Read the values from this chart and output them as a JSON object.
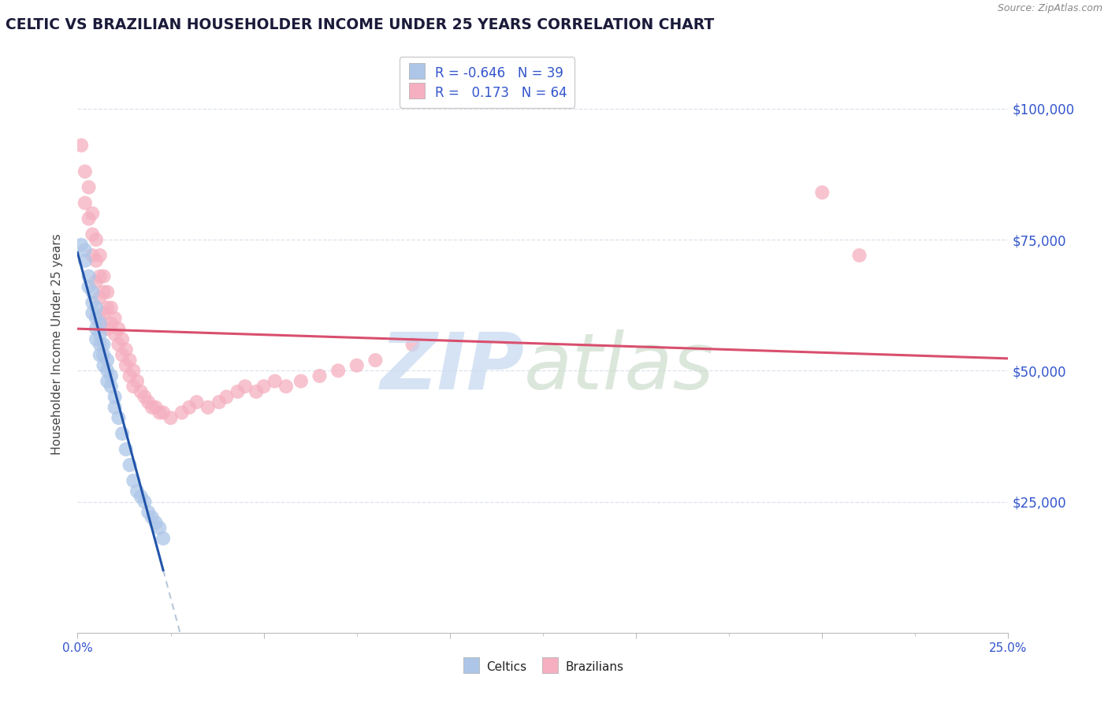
{
  "title": "CELTIC VS BRAZILIAN HOUSEHOLDER INCOME UNDER 25 YEARS CORRELATION CHART",
  "source": "Source: ZipAtlas.com",
  "ylabel": "Householder Income Under 25 years",
  "ytick_labels": [
    "$25,000",
    "$50,000",
    "$75,000",
    "$100,000"
  ],
  "ytick_values": [
    25000,
    50000,
    75000,
    100000
  ],
  "ymin": 0,
  "ymax": 110000,
  "xmin": 0.0,
  "xmax": 0.25,
  "celtics_color": "#adc6e8",
  "brazilians_color": "#f5afc0",
  "celtics_line_color": "#2255aa",
  "brazilians_line_color": "#d94f6e",
  "celtics_extrap_color": "#b8c8d8",
  "R_celtics": -0.646,
  "N_celtics": 39,
  "R_brazilians": 0.173,
  "N_brazilians": 64,
  "background_color": "#ffffff",
  "grid_color": "#dde2ee",
  "celtics_x": [
    0.001,
    0.002,
    0.002,
    0.003,
    0.003,
    0.004,
    0.004,
    0.004,
    0.005,
    0.005,
    0.005,
    0.005,
    0.006,
    0.006,
    0.006,
    0.006,
    0.007,
    0.007,
    0.007,
    0.008,
    0.008,
    0.008,
    0.009,
    0.009,
    0.01,
    0.01,
    0.011,
    0.012,
    0.013,
    0.014,
    0.015,
    0.016,
    0.017,
    0.018,
    0.019,
    0.02,
    0.021,
    0.022,
    0.023
  ],
  "celtics_y": [
    74000,
    73000,
    71000,
    68000,
    66000,
    65000,
    63000,
    61000,
    62000,
    60000,
    58000,
    56000,
    59000,
    57000,
    55000,
    53000,
    55000,
    53000,
    51000,
    52000,
    50000,
    48000,
    49000,
    47000,
    45000,
    43000,
    41000,
    38000,
    35000,
    32000,
    29000,
    27000,
    26000,
    25000,
    23000,
    22000,
    21000,
    20000,
    18000
  ],
  "brazilians_x": [
    0.001,
    0.002,
    0.002,
    0.003,
    0.003,
    0.004,
    0.004,
    0.004,
    0.005,
    0.005,
    0.005,
    0.006,
    0.006,
    0.006,
    0.006,
    0.007,
    0.007,
    0.007,
    0.008,
    0.008,
    0.008,
    0.009,
    0.009,
    0.01,
    0.01,
    0.011,
    0.011,
    0.012,
    0.012,
    0.013,
    0.013,
    0.014,
    0.014,
    0.015,
    0.015,
    0.016,
    0.017,
    0.018,
    0.019,
    0.02,
    0.021,
    0.022,
    0.023,
    0.025,
    0.028,
    0.03,
    0.032,
    0.035,
    0.038,
    0.04,
    0.043,
    0.045,
    0.048,
    0.05,
    0.053,
    0.056,
    0.06,
    0.065,
    0.07,
    0.075,
    0.08,
    0.09,
    0.2,
    0.21
  ],
  "brazilians_y": [
    93000,
    88000,
    82000,
    85000,
    79000,
    80000,
    76000,
    72000,
    75000,
    71000,
    67000,
    72000,
    68000,
    64000,
    60000,
    68000,
    65000,
    61000,
    65000,
    62000,
    58000,
    62000,
    59000,
    60000,
    57000,
    58000,
    55000,
    56000,
    53000,
    54000,
    51000,
    52000,
    49000,
    50000,
    47000,
    48000,
    46000,
    45000,
    44000,
    43000,
    43000,
    42000,
    42000,
    41000,
    42000,
    43000,
    44000,
    43000,
    44000,
    45000,
    46000,
    47000,
    46000,
    47000,
    48000,
    47000,
    48000,
    49000,
    50000,
    51000,
    52000,
    55000,
    84000,
    72000
  ]
}
